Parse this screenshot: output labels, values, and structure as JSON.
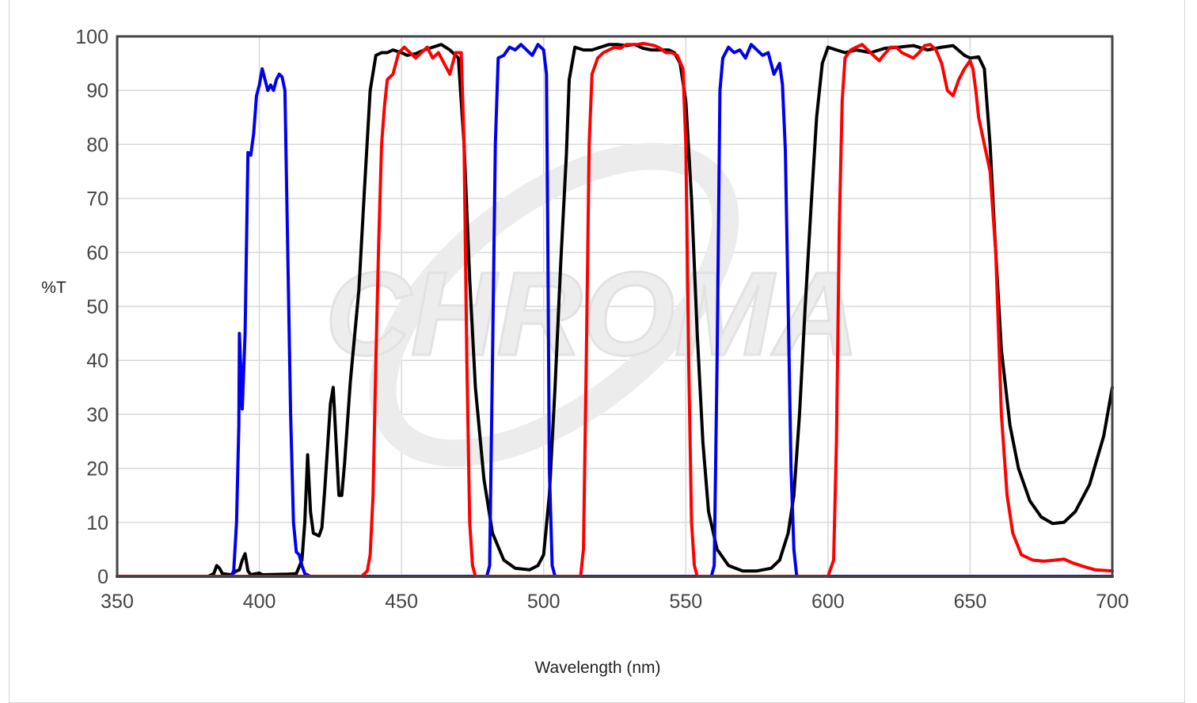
{
  "chart_data": {
    "type": "line",
    "title": "",
    "xlabel": "Wavelength (nm)",
    "ylabel": "%T",
    "xlim": [
      350,
      700
    ],
    "ylim": [
      0,
      100
    ],
    "grid": true,
    "legend": "none",
    "watermark": "CHROMA",
    "xticks": [
      "350",
      "400",
      "450",
      "500",
      "550",
      "600",
      "650",
      "700"
    ],
    "yticks": [
      "0",
      "10",
      "20",
      "30",
      "40",
      "50",
      "60",
      "70",
      "80",
      "90",
      "100"
    ],
    "series": [
      {
        "color": "#000000",
        "points": [
          [
            350,
            0
          ],
          [
            382,
            0
          ],
          [
            384,
            0.5
          ],
          [
            385,
            2
          ],
          [
            386,
            1.5
          ],
          [
            387,
            0.5
          ],
          [
            390,
            0.3
          ],
          [
            392,
            1
          ],
          [
            393,
            1.2
          ],
          [
            394,
            3
          ],
          [
            395,
            4.2
          ],
          [
            396,
            1
          ],
          [
            397,
            0.3
          ],
          [
            400,
            0.6
          ],
          [
            401,
            0.3
          ],
          [
            410,
            0.4
          ],
          [
            413,
            0.5
          ],
          [
            415,
            3
          ],
          [
            416,
            10
          ],
          [
            417,
            22.5
          ],
          [
            418,
            12
          ],
          [
            419,
            8
          ],
          [
            421,
            7.5
          ],
          [
            422,
            9
          ],
          [
            423,
            16
          ],
          [
            425,
            32
          ],
          [
            426,
            35
          ],
          [
            427,
            25
          ],
          [
            428,
            15
          ],
          [
            429,
            15
          ],
          [
            430,
            21
          ],
          [
            432,
            36
          ],
          [
            435,
            53
          ],
          [
            437,
            72
          ],
          [
            439,
            90
          ],
          [
            441,
            96.5
          ],
          [
            443,
            97
          ],
          [
            445,
            97
          ],
          [
            447,
            97.5
          ],
          [
            450,
            97
          ],
          [
            452,
            96.5
          ],
          [
            455,
            96.8
          ],
          [
            458,
            97.5
          ],
          [
            461,
            98
          ],
          [
            464,
            98.5
          ],
          [
            467,
            97.5
          ],
          [
            470,
            96
          ],
          [
            472,
            80
          ],
          [
            474,
            55
          ],
          [
            476,
            35
          ],
          [
            479,
            18
          ],
          [
            482,
            8
          ],
          [
            486,
            3
          ],
          [
            490,
            1.5
          ],
          [
            495,
            1.2
          ],
          [
            498,
            2
          ],
          [
            500,
            4
          ],
          [
            502,
            15
          ],
          [
            504,
            35
          ],
          [
            506,
            58
          ],
          [
            508,
            78
          ],
          [
            509,
            92
          ],
          [
            511,
            98
          ],
          [
            514,
            97.5
          ],
          [
            517,
            97.5
          ],
          [
            520,
            98
          ],
          [
            523,
            98.5
          ],
          [
            526,
            98.5
          ],
          [
            529,
            98.3
          ],
          [
            532,
            98.5
          ],
          [
            535,
            97.8
          ],
          [
            538,
            97.5
          ],
          [
            541,
            97.5
          ],
          [
            544,
            97.5
          ],
          [
            546,
            97
          ],
          [
            548,
            95
          ],
          [
            550,
            88
          ],
          [
            552,
            70
          ],
          [
            554,
            45
          ],
          [
            556,
            25
          ],
          [
            558,
            12
          ],
          [
            561,
            5
          ],
          [
            565,
            2
          ],
          [
            570,
            1
          ],
          [
            575,
            1
          ],
          [
            580,
            1.5
          ],
          [
            583,
            3
          ],
          [
            586,
            8
          ],
          [
            588,
            15
          ],
          [
            590,
            30
          ],
          [
            592,
            50
          ],
          [
            594,
            68
          ],
          [
            596,
            85
          ],
          [
            598,
            95
          ],
          [
            600,
            98
          ],
          [
            603,
            97.5
          ],
          [
            606,
            97
          ],
          [
            610,
            97.5
          ],
          [
            615,
            97
          ],
          [
            620,
            97.8
          ],
          [
            625,
            98
          ],
          [
            630,
            98.3
          ],
          [
            635,
            97.5
          ],
          [
            640,
            98
          ],
          [
            644,
            98.3
          ],
          [
            648,
            96.5
          ],
          [
            650,
            96
          ],
          [
            653,
            96.2
          ],
          [
            655,
            94
          ],
          [
            657,
            80
          ],
          [
            659,
            60
          ],
          [
            661,
            42
          ],
          [
            664,
            28
          ],
          [
            667,
            20
          ],
          [
            671,
            14
          ],
          [
            675,
            11
          ],
          [
            679,
            9.8
          ],
          [
            683,
            10
          ],
          [
            687,
            12
          ],
          [
            692,
            17
          ],
          [
            697,
            26
          ],
          [
            700,
            35
          ]
        ]
      },
      {
        "color": "#0000ee",
        "points": [
          [
            350,
            0
          ],
          [
            390,
            0
          ],
          [
            391,
            1
          ],
          [
            392,
            10
          ],
          [
            392.8,
            28
          ],
          [
            393,
            45
          ],
          [
            393.5,
            38
          ],
          [
            394,
            31
          ],
          [
            395,
            45
          ],
          [
            396,
            78.5
          ],
          [
            397,
            78
          ],
          [
            398,
            82
          ],
          [
            399,
            89
          ],
          [
            400,
            91
          ],
          [
            401,
            94
          ],
          [
            402,
            92
          ],
          [
            403,
            90
          ],
          [
            404,
            91
          ],
          [
            405,
            90
          ],
          [
            406,
            92
          ],
          [
            407,
            93
          ],
          [
            408,
            92.5
          ],
          [
            409,
            90
          ],
          [
            410,
            60
          ],
          [
            411,
            30
          ],
          [
            412,
            10
          ],
          [
            413,
            4.5
          ],
          [
            414,
            4
          ],
          [
            415,
            2
          ],
          [
            416,
            0.5
          ],
          [
            418,
            0
          ],
          [
            480,
            0
          ],
          [
            481,
            2
          ],
          [
            482,
            40
          ],
          [
            483,
            80
          ],
          [
            484,
            96
          ],
          [
            486,
            96.5
          ],
          [
            488,
            98
          ],
          [
            490,
            97.5
          ],
          [
            492,
            98.5
          ],
          [
            494,
            97.5
          ],
          [
            496,
            96.5
          ],
          [
            498,
            98.5
          ],
          [
            500,
            97.5
          ],
          [
            501,
            93
          ],
          [
            501.5,
            60
          ],
          [
            502,
            20
          ],
          [
            503,
            2
          ],
          [
            504,
            0
          ],
          [
            559,
            0
          ],
          [
            560,
            2
          ],
          [
            561,
            40
          ],
          [
            562,
            90
          ],
          [
            563,
            96
          ],
          [
            565,
            98
          ],
          [
            567,
            97
          ],
          [
            569,
            97.5
          ],
          [
            571,
            96
          ],
          [
            573,
            98.5
          ],
          [
            575,
            97.5
          ],
          [
            577,
            96.5
          ],
          [
            579,
            97
          ],
          [
            581,
            93
          ],
          [
            582,
            94
          ],
          [
            583,
            95
          ],
          [
            584,
            91
          ],
          [
            585,
            79
          ],
          [
            586,
            50
          ],
          [
            587,
            20
          ],
          [
            588,
            5
          ],
          [
            589,
            0
          ],
          [
            700,
            0
          ]
        ]
      },
      {
        "color": "#ff0000",
        "points": [
          [
            350,
            0
          ],
          [
            436,
            0
          ],
          [
            438,
            1
          ],
          [
            439,
            4
          ],
          [
            440,
            15
          ],
          [
            441,
            40
          ],
          [
            442,
            62
          ],
          [
            443,
            80
          ],
          [
            444,
            87
          ],
          [
            445,
            92
          ],
          [
            447,
            93
          ],
          [
            449,
            97
          ],
          [
            451,
            98
          ],
          [
            453,
            97
          ],
          [
            455,
            96
          ],
          [
            457,
            97
          ],
          [
            459,
            98
          ],
          [
            461,
            96
          ],
          [
            463,
            97
          ],
          [
            465,
            95
          ],
          [
            467,
            93
          ],
          [
            469,
            97
          ],
          [
            471,
            97
          ],
          [
            472,
            80
          ],
          [
            473,
            40
          ],
          [
            474,
            10
          ],
          [
            475,
            2
          ],
          [
            476,
            0
          ],
          [
            513,
            0
          ],
          [
            514,
            5
          ],
          [
            515,
            40
          ],
          [
            516,
            80
          ],
          [
            517,
            93
          ],
          [
            519,
            96
          ],
          [
            521,
            97
          ],
          [
            523,
            97.5
          ],
          [
            525,
            98
          ],
          [
            527,
            97.8
          ],
          [
            529,
            98.5
          ],
          [
            531,
            98.5
          ],
          [
            533,
            98.5
          ],
          [
            535,
            98.7
          ],
          [
            537,
            98.5
          ],
          [
            539,
            98.3
          ],
          [
            541,
            97.8
          ],
          [
            543,
            97
          ],
          [
            545,
            97
          ],
          [
            547,
            96.5
          ],
          [
            549,
            94
          ],
          [
            550,
            80
          ],
          [
            551,
            40
          ],
          [
            552,
            10
          ],
          [
            553,
            2
          ],
          [
            554,
            0
          ],
          [
            600,
            0
          ],
          [
            602,
            3
          ],
          [
            603,
            25
          ],
          [
            604,
            65
          ],
          [
            605,
            88
          ],
          [
            606,
            96
          ],
          [
            608,
            97.5
          ],
          [
            610,
            98
          ],
          [
            612,
            98.5
          ],
          [
            614,
            97.5
          ],
          [
            616,
            96.5
          ],
          [
            618,
            95.5
          ],
          [
            620,
            96.8
          ],
          [
            622,
            98
          ],
          [
            624,
            98
          ],
          [
            626,
            97
          ],
          [
            628,
            96.5
          ],
          [
            630,
            96
          ],
          [
            632,
            97
          ],
          [
            634,
            98.3
          ],
          [
            636,
            98.5
          ],
          [
            638,
            97.5
          ],
          [
            640,
            95
          ],
          [
            642,
            90
          ],
          [
            644,
            89
          ],
          [
            646,
            92
          ],
          [
            648,
            94
          ],
          [
            650,
            95.5
          ],
          [
            651,
            94
          ],
          [
            652,
            90
          ],
          [
            653,
            85
          ],
          [
            655,
            80
          ],
          [
            657,
            75
          ],
          [
            659,
            60
          ],
          [
            661,
            30
          ],
          [
            663,
            15
          ],
          [
            665,
            8
          ],
          [
            668,
            4
          ],
          [
            672,
            3
          ],
          [
            676,
            2.8
          ],
          [
            680,
            3
          ],
          [
            683,
            3.2
          ],
          [
            686,
            2.5
          ],
          [
            690,
            1.8
          ],
          [
            694,
            1.2
          ],
          [
            700,
            1
          ]
        ]
      }
    ]
  }
}
